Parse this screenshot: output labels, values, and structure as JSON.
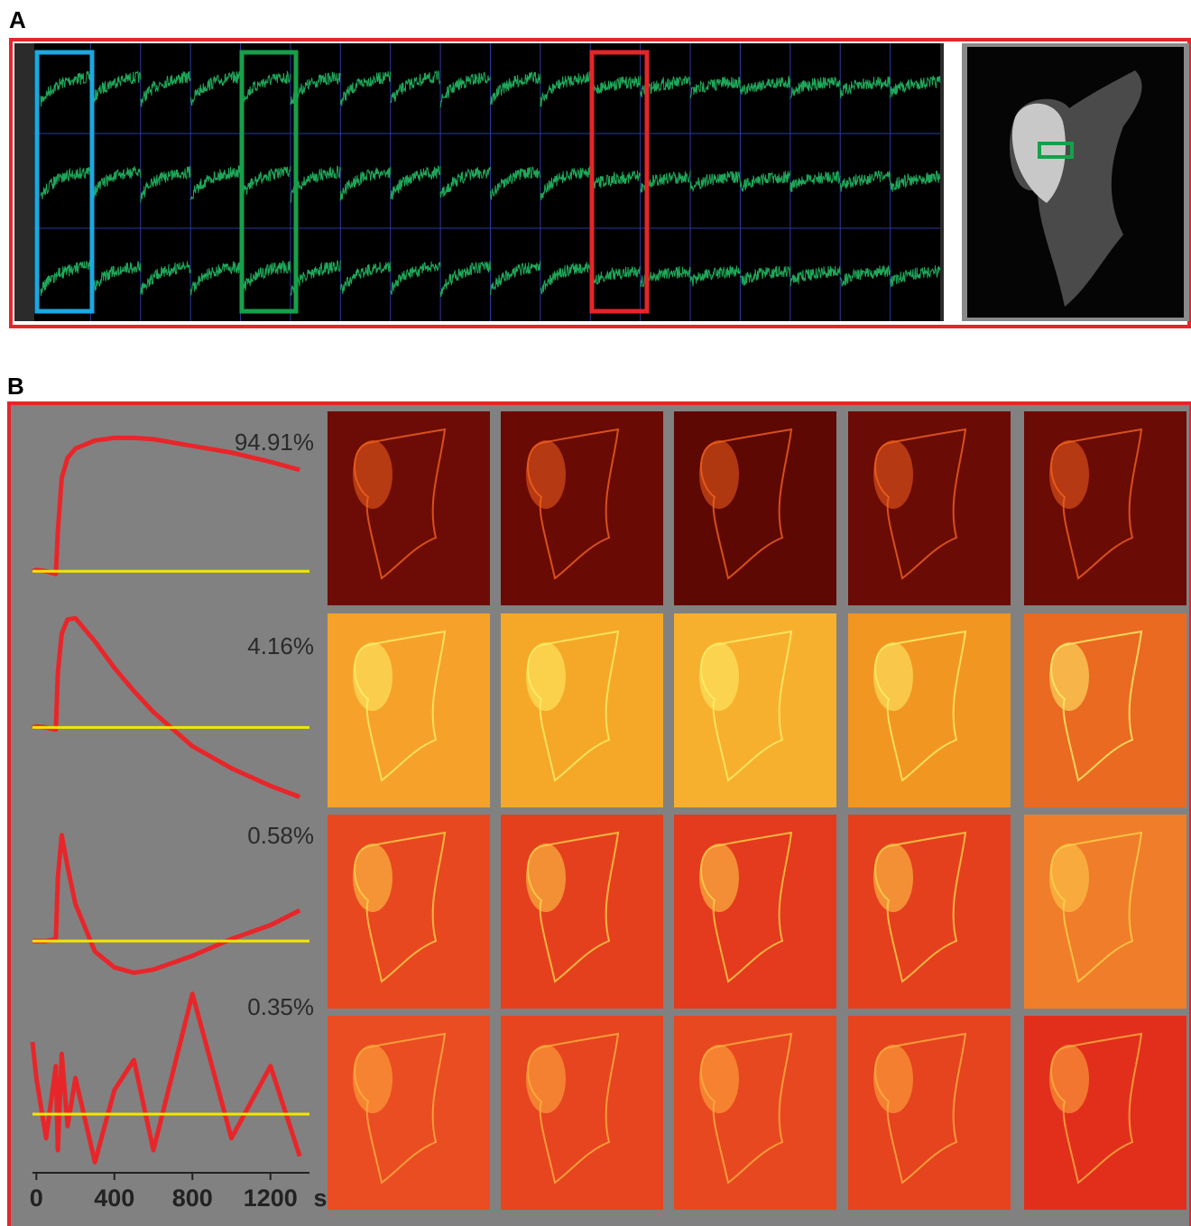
{
  "panel_a": {
    "label": "A"
  },
  "panel_b": {
    "label": "B"
  },
  "chart_data": {
    "type": "line",
    "x": [
      -20,
      0,
      50,
      100,
      110,
      130,
      160,
      200,
      300,
      400,
      500,
      600,
      800,
      1000,
      1200,
      1350
    ],
    "xlim": [
      -20,
      1400
    ],
    "xticks": [
      0,
      400,
      800,
      1200
    ],
    "x_unit": "s",
    "baseline": 0,
    "baseline_color": "#f2e600",
    "series": [
      {
        "name": "94.91%",
        "color": "#e8262a",
        "ylim": [
          -0.1,
          1.05
        ],
        "values": [
          0,
          0.01,
          0,
          -0.02,
          0.3,
          0.7,
          0.85,
          0.92,
          0.98,
          1.0,
          1.0,
          0.99,
          0.94,
          0.89,
          0.82,
          0.76
        ]
      },
      {
        "name": "4.16%",
        "color": "#e8262a",
        "ylim": [
          -0.7,
          1.05
        ],
        "values": [
          0,
          0.01,
          0,
          -0.02,
          0.5,
          0.85,
          0.98,
          0.99,
          0.78,
          0.54,
          0.33,
          0.14,
          -0.17,
          -0.37,
          -0.53,
          -0.63
        ]
      },
      {
        "name": "0.58%",
        "color": "#e8262a",
        "ylim": [
          -0.4,
          1.05
        ],
        "values": [
          0,
          0,
          0,
          0.02,
          0.6,
          1.0,
          0.7,
          0.35,
          -0.1,
          -0.25,
          -0.3,
          -0.27,
          -0.14,
          0.02,
          0.15,
          0.29
        ]
      },
      {
        "name": "0.35%",
        "color": "#e8262a",
        "ylim": [
          -0.45,
          1.05
        ],
        "values": [
          0.6,
          0.3,
          -0.2,
          0.4,
          -0.3,
          0.5,
          -0.1,
          0.3,
          -0.4,
          0.2,
          0.45,
          -0.3,
          1.0,
          -0.2,
          0.4,
          -0.35
        ]
      }
    ]
  }
}
